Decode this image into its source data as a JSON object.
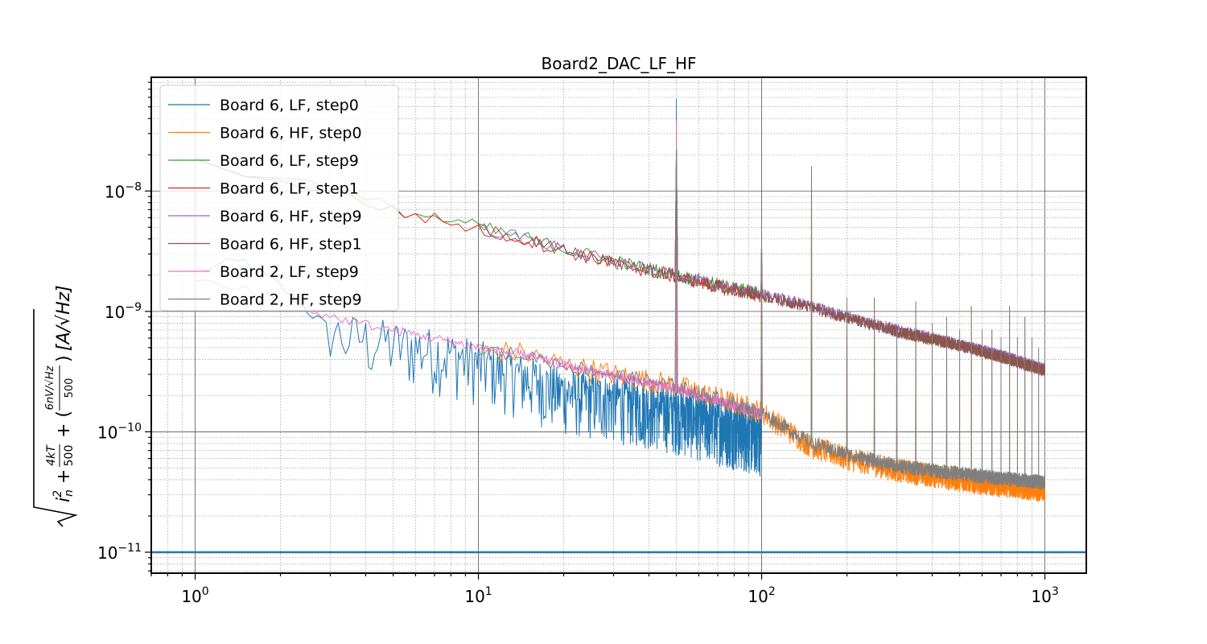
{
  "chart_data": {
    "type": "line",
    "title": "Board2_DAC_LF_HF",
    "xlabel": "",
    "ylabel_parts": {
      "radicand": "i_n^2 + 4kT/500 + (6nV/√Hz / 500)",
      "unit": "[A/√Hz]"
    },
    "x_scale": "log",
    "y_scale": "log",
    "xlim": [
      0.7,
      1400
    ],
    "ylim": [
      6.7e-12,
      8.8e-08
    ],
    "x_ticks": [
      {
        "value": 1,
        "label": "10^0"
      },
      {
        "value": 10,
        "label": "10^1"
      },
      {
        "value": 100,
        "label": "10^2"
      },
      {
        "value": 1000,
        "label": "10^3"
      }
    ],
    "y_ticks": [
      {
        "value": 1e-11,
        "label": "10^-11"
      },
      {
        "value": 1e-10,
        "label": "10^-10"
      },
      {
        "value": 1e-09,
        "label": "10^-9"
      },
      {
        "value": 1e-08,
        "label": "10^-8"
      }
    ],
    "grid": true,
    "legend_position": "top-left",
    "reference_line": {
      "y": 1e-11,
      "color": "#1f77b4"
    },
    "series": [
      {
        "name": "Board 6, LF, step0",
        "color": "#1f77b4",
        "x_range": [
          1,
          100
        ],
        "x": [
          1,
          1.5,
          2,
          3,
          5,
          7,
          10,
          15,
          20,
          30,
          50,
          70,
          100
        ],
        "y": [
          2.2e-09,
          2.6e-09,
          1.6e-09,
          7e-10,
          5.8e-10,
          5e-10,
          4e-10,
          3e-10,
          2.3e-10,
          2e-10,
          1.6e-10,
          1.3e-10,
          1.05e-10
        ],
        "peaks": [
          {
            "x": 50,
            "y": 5.8e-08
          },
          {
            "x": 100,
            "y": 3.5e-09
          }
        ]
      },
      {
        "name": "Board 6, HF, step0",
        "color": "#ff7f0e",
        "x_range": [
          10,
          1000
        ],
        "x": [
          10,
          15,
          20,
          30,
          50,
          70,
          100,
          150,
          200,
          300,
          500,
          700,
          1000
        ],
        "y": [
          4.8e-10,
          4.4e-10,
          3.6e-10,
          3e-10,
          2.4e-10,
          1.9e-10,
          1.45e-10,
          7.5e-11,
          6e-11,
          4.8e-11,
          4e-11,
          3.6e-11,
          3.3e-11
        ],
        "peaks": [
          {
            "x": 50,
            "y": 2.2e-08
          },
          {
            "x": 100,
            "y": 3.5e-09
          },
          {
            "x": 150,
            "y": 1.5e-08
          },
          {
            "x": 200,
            "y": 1.3e-09
          },
          {
            "x": 250,
            "y": 1.3e-09
          },
          {
            "x": 300,
            "y": 7e-10
          },
          {
            "x": 350,
            "y": 1.2e-09
          },
          {
            "x": 450,
            "y": 9e-10
          },
          {
            "x": 550,
            "y": 1.1e-09
          },
          {
            "x": 650,
            "y": 7e-10
          },
          {
            "x": 750,
            "y": 1.1e-09
          },
          {
            "x": 850,
            "y": 9e-10
          }
        ]
      },
      {
        "name": "Board 6, LF, step9",
        "color": "#2ca02c",
        "x_range": [
          1,
          100
        ],
        "x": [
          1,
          2,
          3,
          5,
          7,
          10,
          15,
          20,
          30,
          50,
          70,
          100
        ],
        "y": [
          1.7e-08,
          1.35e-08,
          1e-08,
          7.2e-09,
          6e-09,
          5e-09,
          4e-09,
          3.3e-09,
          2.6e-09,
          2e-09,
          1.65e-09,
          1.4e-09
        ],
        "peaks": [
          {
            "x": 50,
            "y": 2.2e-08
          },
          {
            "x": 100,
            "y": 3.5e-09
          }
        ]
      },
      {
        "name": "Board 6, LF, step1",
        "color": "#d62728",
        "x_range": [
          1,
          100
        ],
        "x": [
          1,
          2,
          3,
          5,
          7,
          10,
          15,
          20,
          30,
          50,
          70,
          100
        ],
        "y": [
          1.7e-08,
          1.3e-08,
          9.5e-09,
          7e-09,
          5.8e-09,
          4.8e-09,
          3.9e-09,
          3.2e-09,
          2.5e-09,
          1.95e-09,
          1.6e-09,
          1.35e-09
        ],
        "peaks": [
          {
            "x": 50,
            "y": 2.2e-08
          },
          {
            "x": 100,
            "y": 3.5e-09
          }
        ]
      },
      {
        "name": "Board 6, HF, step9",
        "color": "#9467bd",
        "x_range": [
          10,
          1000
        ],
        "x": [
          10,
          15,
          20,
          30,
          50,
          70,
          100,
          150,
          200,
          300,
          500,
          700,
          1000
        ],
        "y": [
          5e-09,
          4e-09,
          3.3e-09,
          2.6e-09,
          2e-09,
          1.65e-09,
          1.4e-09,
          1.1e-09,
          9e-10,
          7e-10,
          5.3e-10,
          4.3e-10,
          3.3e-10
        ],
        "peaks": [
          {
            "x": 50,
            "y": 2.2e-08
          },
          {
            "x": 100,
            "y": 3.5e-09
          }
        ]
      },
      {
        "name": "Board 6, HF, step1",
        "color": "#8c564b",
        "x_range": [
          10,
          1000
        ],
        "x": [
          10,
          15,
          20,
          30,
          50,
          70,
          100,
          150,
          200,
          300,
          500,
          700,
          1000
        ],
        "y": [
          4.9e-09,
          3.9e-09,
          3.2e-09,
          2.55e-09,
          1.95e-09,
          1.6e-09,
          1.35e-09,
          1.08e-09,
          8.8e-10,
          6.8e-10,
          5.2e-10,
          4.2e-10,
          3.2e-10
        ],
        "peaks": [
          {
            "x": 50,
            "y": 2.2e-08
          },
          {
            "x": 100,
            "y": 3.5e-09
          }
        ]
      },
      {
        "name": "Board 2, LF, step9",
        "color": "#e377c2",
        "x_range": [
          1,
          100
        ],
        "x": [
          1,
          1.5,
          2,
          3,
          5,
          7,
          10,
          15,
          20,
          30,
          50,
          70,
          100
        ],
        "y": [
          1.8e-09,
          1.5e-09,
          1.25e-09,
          9e-10,
          7e-10,
          6e-10,
          5e-10,
          4.3e-10,
          3.6e-10,
          2.9e-10,
          2.3e-10,
          1.8e-10,
          1.4e-10
        ],
        "peaks": [
          {
            "x": 50,
            "y": 3.8e-08
          },
          {
            "x": 100,
            "y": 3e-09
          }
        ]
      },
      {
        "name": "Board 2, HF, step9",
        "color": "#7f7f7f",
        "x_range": [
          10,
          1000
        ],
        "x": [
          10,
          15,
          20,
          30,
          50,
          70,
          100,
          150,
          200,
          300,
          500,
          700,
          1000
        ],
        "y": [
          4.8e-10,
          4.3e-10,
          3.6e-10,
          3e-10,
          2.4e-10,
          1.9e-10,
          1.45e-10,
          8e-11,
          6.5e-11,
          5.2e-11,
          4.5e-11,
          4.1e-11,
          3.8e-11
        ],
        "peaks": [
          {
            "x": 50,
            "y": 2.2e-08
          },
          {
            "x": 100,
            "y": 3.5e-09
          },
          {
            "x": 150,
            "y": 1.6e-08
          },
          {
            "x": 200,
            "y": 1.3e-09
          },
          {
            "x": 250,
            "y": 1.3e-09
          },
          {
            "x": 300,
            "y": 7e-10
          },
          {
            "x": 350,
            "y": 1.2e-09
          },
          {
            "x": 400,
            "y": 8e-10
          },
          {
            "x": 450,
            "y": 9e-10
          },
          {
            "x": 500,
            "y": 7e-10
          },
          {
            "x": 550,
            "y": 1.1e-09
          },
          {
            "x": 600,
            "y": 7e-10
          },
          {
            "x": 650,
            "y": 7e-10
          },
          {
            "x": 700,
            "y": 6e-10
          },
          {
            "x": 750,
            "y": 1.1e-09
          },
          {
            "x": 800,
            "y": 6e-10
          },
          {
            "x": 850,
            "y": 9e-10
          },
          {
            "x": 900,
            "y": 6e-10
          },
          {
            "x": 950,
            "y": 5e-10
          }
        ]
      }
    ]
  }
}
